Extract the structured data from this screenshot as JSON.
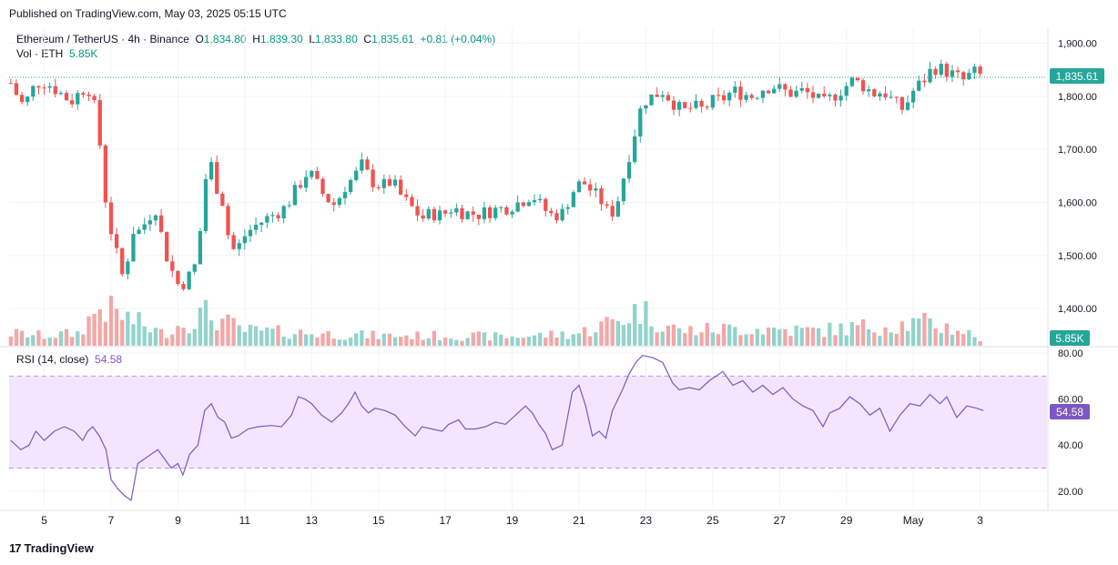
{
  "header": {
    "published": "Published on TradingView.com, May 03, 2025 05:15 UTC"
  },
  "legend": {
    "symbol": "Ethereum / TetherUS · 4h · Binance",
    "o_label": "O",
    "o_value": "1,834.80",
    "h_label": "H",
    "h_value": "1,839.30",
    "l_label": "L",
    "l_value": "1,833.80",
    "c_label": "C",
    "c_value": "1,835.61",
    "change": "+0.81 (+0.04%)",
    "vol_label": "Vol · ETH",
    "vol_value": "5.85K"
  },
  "rsi_legend": {
    "label": "RSI (14, close)",
    "value": "54.58"
  },
  "price_badge": "1,835.61",
  "volume_badge": "5.85K",
  "rsi_badge": "54.58",
  "footer": {
    "logo_text": "17",
    "brand": "TradingView"
  },
  "colors": {
    "up": "#26a69a",
    "down": "#ef5350",
    "up_vol": "#92d3cc",
    "down_vol": "#f5a6a6",
    "rsi": "#7e57c2",
    "rsi_band": "#f3e5fd",
    "price_line": "#26a69a"
  },
  "chart_data": [
    {
      "type": "candlestick",
      "symbol": "ETHUSDT",
      "interval": "4h",
      "price_axis": {
        "ticks": [
          "1,400.00",
          "1,500.00",
          "1,600.00",
          "1,700.00",
          "1,800.00",
          "1,900.00"
        ],
        "tick_values": [
          1400,
          1500,
          1600,
          1700,
          1800,
          1900
        ],
        "range": [
          1330,
          1930
        ]
      },
      "time_axis": {
        "ticks": [
          "5",
          "7",
          "9",
          "11",
          "13",
          "15",
          "17",
          "19",
          "21",
          "23",
          "25",
          "27",
          "29",
          "May",
          "3"
        ],
        "tick_days": [
          5,
          7,
          9,
          11,
          13,
          15,
          17,
          19,
          21,
          23,
          25,
          27,
          29,
          31,
          33
        ],
        "start_day": 3.95,
        "end_day": 35.0
      },
      "last_price": 1835.61,
      "close_path": [
        [
          4.0,
          1825
        ],
        [
          4.2,
          1800
        ],
        [
          4.4,
          1780
        ],
        [
          4.6,
          1810
        ],
        [
          4.9,
          1830
        ],
        [
          5.2,
          1820
        ],
        [
          5.5,
          1805
        ],
        [
          5.8,
          1790
        ],
        [
          6.1,
          1810
        ],
        [
          6.3,
          1820
        ],
        [
          6.5,
          1780
        ],
        [
          6.65,
          1720
        ],
        [
          6.8,
          1620
        ],
        [
          6.95,
          1560
        ],
        [
          7.1,
          1520
        ],
        [
          7.25,
          1480
        ],
        [
          7.4,
          1450
        ],
        [
          7.55,
          1520
        ],
        [
          7.7,
          1555
        ],
        [
          7.85,
          1545
        ],
        [
          8.0,
          1560
        ],
        [
          8.2,
          1580
        ],
        [
          8.35,
          1590
        ],
        [
          8.5,
          1540
        ],
        [
          8.7,
          1490
        ],
        [
          8.9,
          1460
        ],
        [
          9.05,
          1440
        ],
        [
          9.25,
          1455
        ],
        [
          9.45,
          1470
        ],
        [
          9.6,
          1500
        ],
        [
          9.8,
          1640
        ],
        [
          10.0,
          1670
        ],
        [
          10.2,
          1620
        ],
        [
          10.35,
          1600
        ],
        [
          10.55,
          1520
        ],
        [
          10.75,
          1505
        ],
        [
          10.9,
          1530
        ],
        [
          11.1,
          1545
        ],
        [
          11.4,
          1560
        ],
        [
          11.8,
          1575
        ],
        [
          12.2,
          1590
        ],
        [
          12.6,
          1630
        ],
        [
          12.9,
          1660
        ],
        [
          13.1,
          1640
        ],
        [
          13.4,
          1610
        ],
        [
          13.7,
          1595
        ],
        [
          14.0,
          1630
        ],
        [
          14.3,
          1650
        ],
        [
          14.5,
          1670
        ],
        [
          14.8,
          1640
        ],
        [
          15.1,
          1630
        ],
        [
          15.4,
          1640
        ],
        [
          15.7,
          1610
        ],
        [
          16.0,
          1590
        ],
        [
          16.3,
          1570
        ],
        [
          16.6,
          1580
        ],
        [
          16.9,
          1575
        ],
        [
          17.2,
          1590
        ],
        [
          17.6,
          1580
        ],
        [
          18.0,
          1578
        ],
        [
          18.4,
          1585
        ],
        [
          18.8,
          1590
        ],
        [
          19.2,
          1600
        ],
        [
          19.6,
          1615
        ],
        [
          19.9,
          1590
        ],
        [
          20.2,
          1575
        ],
        [
          20.5,
          1580
        ],
        [
          20.8,
          1620
        ],
        [
          21.1,
          1640
        ],
        [
          21.4,
          1620
        ],
        [
          21.7,
          1600
        ],
        [
          21.9,
          1575
        ],
        [
          22.1,
          1590
        ],
        [
          22.3,
          1640
        ],
        [
          22.5,
          1690
        ],
        [
          22.7,
          1740
        ],
        [
          22.9,
          1790
        ],
        [
          23.2,
          1800
        ],
        [
          23.5,
          1810
        ],
        [
          23.8,
          1790
        ],
        [
          24.1,
          1770
        ],
        [
          24.4,
          1780
        ],
        [
          24.7,
          1775
        ],
        [
          25.0,
          1790
        ],
        [
          25.3,
          1795
        ],
        [
          25.6,
          1810
        ],
        [
          25.9,
          1805
        ],
        [
          26.2,
          1800
        ],
        [
          26.5,
          1815
        ],
        [
          26.8,
          1820
        ],
        [
          27.1,
          1810
        ],
        [
          27.4,
          1805
        ],
        [
          27.7,
          1810
        ],
        [
          28.0,
          1800
        ],
        [
          28.3,
          1785
        ],
        [
          28.6,
          1800
        ],
        [
          28.9,
          1815
        ],
        [
          29.2,
          1830
        ],
        [
          29.5,
          1820
        ],
        [
          29.8,
          1805
        ],
        [
          30.1,
          1810
        ],
        [
          30.4,
          1790
        ],
        [
          30.7,
          1775
        ],
        [
          31.0,
          1810
        ],
        [
          31.3,
          1830
        ],
        [
          31.6,
          1855
        ],
        [
          31.9,
          1850
        ],
        [
          32.2,
          1840
        ],
        [
          32.5,
          1830
        ],
        [
          32.8,
          1845
        ],
        [
          33.1,
          1836
        ]
      ],
      "volume": {
        "badge": "5.85K",
        "relative_path": [
          [
            4.0,
            0.25
          ],
          [
            5.0,
            0.2
          ],
          [
            6.0,
            0.25
          ],
          [
            6.7,
            0.8
          ],
          [
            7.0,
            0.7
          ],
          [
            7.5,
            0.55
          ],
          [
            8.5,
            0.25
          ],
          [
            9.5,
            0.55
          ],
          [
            9.8,
            0.65
          ],
          [
            10.3,
            0.5
          ],
          [
            11.0,
            0.3
          ],
          [
            13.0,
            0.25
          ],
          [
            15.0,
            0.2
          ],
          [
            17.0,
            0.2
          ],
          [
            19.0,
            0.18
          ],
          [
            21.0,
            0.25
          ],
          [
            22.5,
            0.6
          ],
          [
            22.8,
            0.75
          ],
          [
            23.2,
            0.55
          ],
          [
            24.0,
            0.3
          ],
          [
            26.0,
            0.35
          ],
          [
            28.0,
            0.3
          ],
          [
            30.0,
            0.4
          ],
          [
            31.4,
            0.45
          ],
          [
            32.5,
            0.3
          ],
          [
            33.1,
            0.1
          ]
        ]
      }
    },
    {
      "type": "line",
      "name": "RSI (14, close)",
      "y_axis": {
        "ticks": [
          "20.00",
          "40.00",
          "60.00",
          "80.00"
        ],
        "tick_values": [
          20,
          40,
          60,
          80
        ],
        "range": [
          12,
          82
        ]
      },
      "band": [
        30,
        70
      ],
      "last_value": 54.58,
      "points": [
        [
          4.0,
          42
        ],
        [
          4.3,
          38
        ],
        [
          4.55,
          40
        ],
        [
          4.75,
          46
        ],
        [
          5.0,
          42
        ],
        [
          5.3,
          46
        ],
        [
          5.6,
          48
        ],
        [
          5.9,
          46
        ],
        [
          6.15,
          42
        ],
        [
          6.3,
          46
        ],
        [
          6.45,
          48
        ],
        [
          6.65,
          44
        ],
        [
          6.85,
          38
        ],
        [
          7.0,
          25
        ],
        [
          7.2,
          21
        ],
        [
          7.4,
          18
        ],
        [
          7.6,
          16
        ],
        [
          7.8,
          32
        ],
        [
          8.0,
          34
        ],
        [
          8.2,
          36
        ],
        [
          8.4,
          38
        ],
        [
          8.6,
          34
        ],
        [
          8.8,
          30
        ],
        [
          9.0,
          32
        ],
        [
          9.15,
          27
        ],
        [
          9.35,
          36
        ],
        [
          9.6,
          40
        ],
        [
          9.8,
          55
        ],
        [
          10.0,
          58
        ],
        [
          10.2,
          52
        ],
        [
          10.4,
          50
        ],
        [
          10.6,
          43
        ],
        [
          10.8,
          44
        ],
        [
          11.1,
          47
        ],
        [
          11.4,
          48
        ],
        [
          11.8,
          48.5
        ],
        [
          12.1,
          48
        ],
        [
          12.4,
          53
        ],
        [
          12.6,
          61
        ],
        [
          12.8,
          60
        ],
        [
          13.0,
          58
        ],
        [
          13.3,
          53
        ],
        [
          13.6,
          50
        ],
        [
          13.9,
          54
        ],
        [
          14.1,
          58
        ],
        [
          14.3,
          63
        ],
        [
          14.5,
          57
        ],
        [
          14.7,
          54
        ],
        [
          14.9,
          56
        ],
        [
          15.2,
          55
        ],
        [
          15.5,
          53
        ],
        [
          15.8,
          48
        ],
        [
          16.1,
          44
        ],
        [
          16.3,
          48
        ],
        [
          16.6,
          47
        ],
        [
          16.9,
          46
        ],
        [
          17.1,
          49
        ],
        [
          17.4,
          51
        ],
        [
          17.6,
          47
        ],
        [
          17.9,
          47
        ],
        [
          18.2,
          48
        ],
        [
          18.5,
          50
        ],
        [
          18.8,
          49
        ],
        [
          19.1,
          53
        ],
        [
          19.4,
          57
        ],
        [
          19.6,
          54
        ],
        [
          19.8,
          49
        ],
        [
          20.0,
          45
        ],
        [
          20.2,
          38
        ],
        [
          20.5,
          40
        ],
        [
          20.8,
          63
        ],
        [
          21.0,
          66
        ],
        [
          21.2,
          57
        ],
        [
          21.4,
          44
        ],
        [
          21.6,
          46
        ],
        [
          21.8,
          43
        ],
        [
          22.0,
          55
        ],
        [
          22.3,
          64
        ],
        [
          22.5,
          71
        ],
        [
          22.7,
          76
        ],
        [
          22.9,
          79
        ],
        [
          23.2,
          78
        ],
        [
          23.5,
          76
        ],
        [
          23.8,
          67
        ],
        [
          24.0,
          64
        ],
        [
          24.3,
          65
        ],
        [
          24.6,
          64
        ],
        [
          24.9,
          68
        ],
        [
          25.3,
          72
        ],
        [
          25.6,
          66
        ],
        [
          25.9,
          68
        ],
        [
          26.2,
          63
        ],
        [
          26.5,
          66
        ],
        [
          26.8,
          62
        ],
        [
          27.1,
          65
        ],
        [
          27.4,
          60
        ],
        [
          27.7,
          57
        ],
        [
          28.0,
          55
        ],
        [
          28.3,
          48
        ],
        [
          28.5,
          54
        ],
        [
          28.8,
          56
        ],
        [
          29.1,
          61
        ],
        [
          29.4,
          58
        ],
        [
          29.7,
          53
        ],
        [
          30.0,
          56
        ],
        [
          30.3,
          46
        ],
        [
          30.6,
          53
        ],
        [
          30.9,
          58
        ],
        [
          31.2,
          57
        ],
        [
          31.5,
          62
        ],
        [
          31.8,
          58
        ],
        [
          32.0,
          61
        ],
        [
          32.3,
          52
        ],
        [
          32.6,
          57
        ],
        [
          32.9,
          56
        ],
        [
          33.1,
          55
        ]
      ]
    }
  ]
}
